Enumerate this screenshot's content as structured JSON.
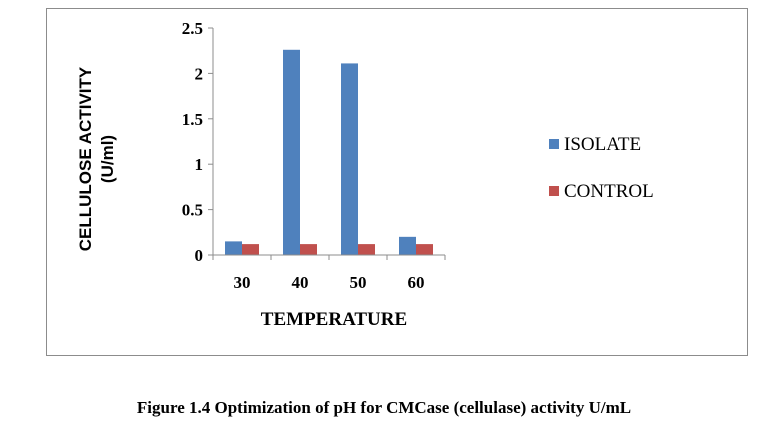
{
  "chart_data": {
    "type": "bar",
    "categories": [
      "30",
      "40",
      "50",
      "60"
    ],
    "series": [
      {
        "name": "ISOLATE",
        "values": [
          0.15,
          2.26,
          2.11,
          0.2
        ],
        "color": "#4f81bd"
      },
      {
        "name": "CONTROL",
        "values": [
          0.12,
          0.12,
          0.12,
          0.12
        ],
        "color": "#c0504d"
      }
    ],
    "xlabel": "TEMPERATURE",
    "ylabel_lines": [
      "CELLULOSE ACTIVITY",
      "(U/ml)"
    ],
    "ylim": [
      0,
      2.5
    ],
    "yticks": [
      0,
      0.5,
      1,
      1.5,
      2,
      2.5
    ],
    "ytick_labels": [
      "0",
      "0.5",
      "1",
      "1.5",
      "2",
      "2.5"
    ],
    "grid": false,
    "legend_position": "right"
  },
  "caption": "Figure 1.4 Optimization of pH for CMCase (cellulase) activity U/mL"
}
